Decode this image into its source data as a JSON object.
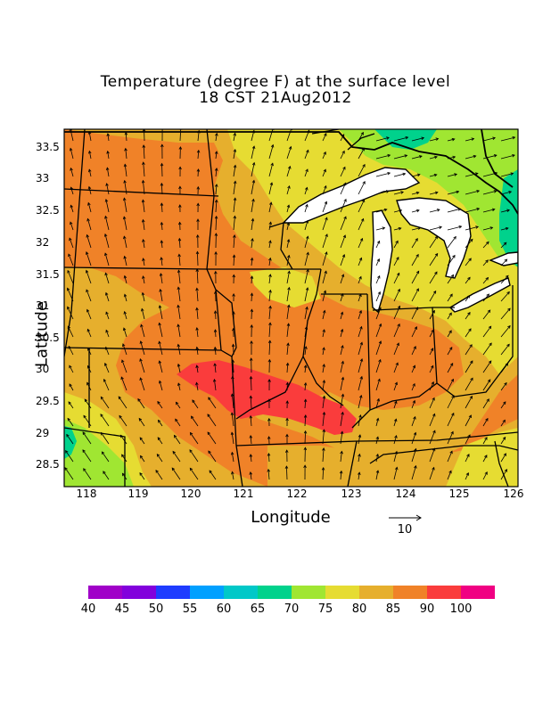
{
  "title": "Temperature (degree F) at the surface level",
  "subtitle": "18 CST 21Aug2012",
  "ylabel": "Latitude",
  "xlabel": "Longitude",
  "yticks": [
    "33.5",
    "33",
    "32.5",
    "32",
    "31.5",
    "31",
    "30.5",
    "30",
    "29.5",
    "29",
    "28.5"
  ],
  "xticks": [
    "118",
    "119",
    "120",
    "121",
    "122",
    "123",
    "124",
    "125",
    "126"
  ],
  "vector_ref": {
    "label": "10"
  },
  "colorbar": {
    "labels": [
      "40",
      "45",
      "50",
      "55",
      "60",
      "65",
      "70",
      "75",
      "80",
      "85",
      "90",
      "100"
    ],
    "colors": [
      "#a000c8",
      "#8200dc",
      "#1e3cff",
      "#00a0ff",
      "#00c8c8",
      "#00d28c",
      "#a0e632",
      "#e6dc32",
      "#e6af2d",
      "#f08228",
      "#fa3c3c",
      "#f00082"
    ]
  },
  "map_colors": {
    "t70": "#a0e632",
    "t75": "#e6dc32",
    "t80": "#e6af2d",
    "t85": "#f08228",
    "t90": "#fa3c3c",
    "t65": "#00d28c"
  }
}
